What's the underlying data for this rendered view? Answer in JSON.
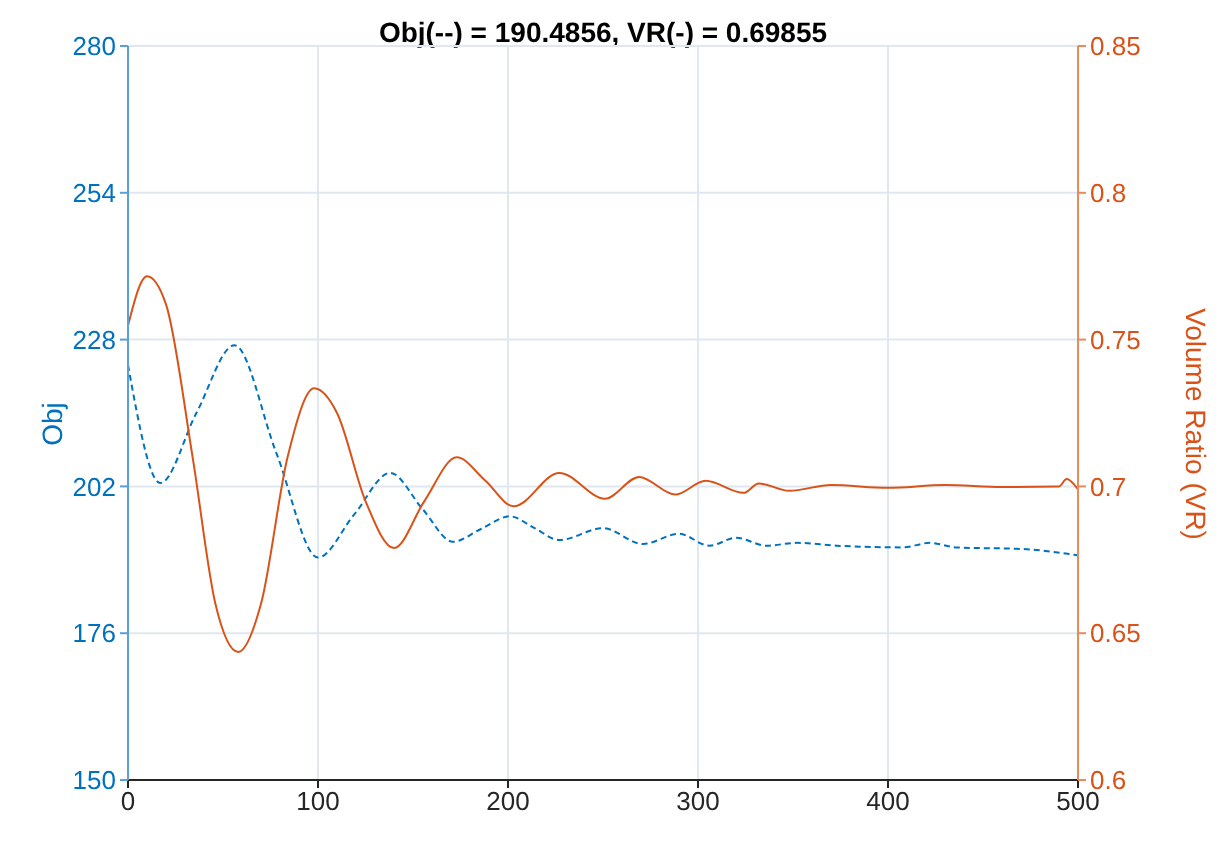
{
  "chart_data": {
    "type": "line",
    "title": "Obj(--) = 190.4856, VR(-) = 0.69855",
    "ylabel": "Obj",
    "y2label": "Volume Ratio (VR)",
    "xlim": [
      0,
      500
    ],
    "xticks": [
      0,
      100,
      200,
      300,
      400,
      500
    ],
    "ylim": [
      150,
      280
    ],
    "yticks": [
      150,
      176,
      202,
      228,
      254,
      280
    ],
    "y2lim": [
      0.6,
      0.85
    ],
    "y2ticks": [
      0.6,
      0.65,
      0.7,
      0.75,
      0.8,
      0.85
    ],
    "grid": true,
    "marker": "none",
    "series": [
      {
        "color": "#0072bd",
        "line_style": "dashed",
        "x": [
          0,
          17,
          36,
          56,
          78,
          100,
          119,
          138,
          155,
          171,
          186,
          201,
          214,
          227,
          250,
          271,
          290,
          306,
          320,
          336,
          352,
          373,
          408,
          422,
          436,
          471,
          500
        ],
        "values": [
          223.5,
          202.6,
          215,
          227,
          208,
          189.4,
          197,
          204.4,
          198,
          192.2,
          194.5,
          196.7,
          194.6,
          192.5,
          194.6,
          191.8,
          193.6,
          191.5,
          192.9,
          191.5,
          192,
          191.5,
          191.2,
          192,
          191.2,
          190.9,
          189.8
        ]
      },
      {
        "color": "#d95319",
        "line_style": "solid",
        "axis": "y2",
        "x": [
          0,
          10,
          20,
          34,
          46,
          58,
          70,
          84,
          98,
          110,
          125,
          140,
          156,
          173,
          188,
          203,
          227,
          251,
          269,
          288,
          304,
          324,
          332,
          348,
          370,
          400,
          430,
          460,
          490,
          494,
          500
        ],
        "values": [
          0.7548,
          0.7716,
          0.762,
          0.71,
          0.66,
          0.6436,
          0.66,
          0.71,
          0.7334,
          0.725,
          0.695,
          0.679,
          0.695,
          0.7099,
          0.702,
          0.6932,
          0.7046,
          0.6958,
          0.7032,
          0.6972,
          0.7019,
          0.6978,
          0.701,
          0.6985,
          0.7005,
          0.6995,
          0.7005,
          0.6998,
          0.7,
          0.7025,
          0.699
        ]
      }
    ]
  }
}
